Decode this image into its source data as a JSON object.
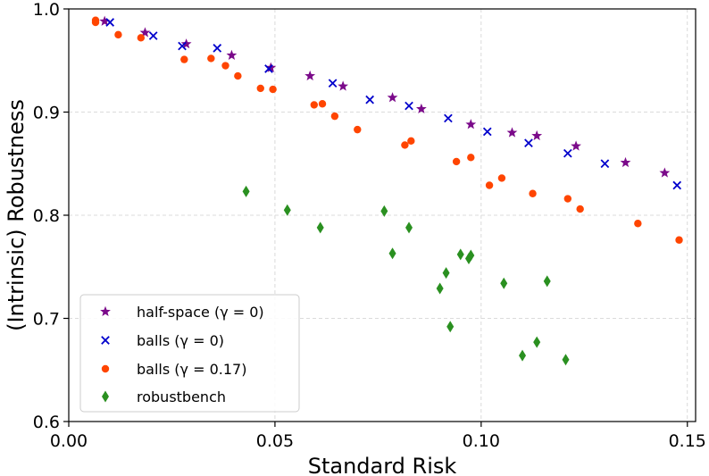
{
  "chart_data": {
    "type": "scatter",
    "xlabel": "Standard Risk",
    "ylabel": "(Intrinsic) Robustness",
    "xlim": [
      0.0,
      0.152
    ],
    "ylim": [
      0.6,
      1.0
    ],
    "xticks": [
      0.0,
      0.05,
      0.1,
      0.15
    ],
    "xtick_labels": [
      "0.00",
      "0.05",
      "0.10",
      "0.15"
    ],
    "yticks": [
      0.6,
      0.7,
      0.8,
      0.9,
      1.0
    ],
    "ytick_labels": [
      "0.6",
      "0.7",
      "0.8",
      "0.9",
      "1.0"
    ],
    "grid": true,
    "legend_position": "lower-left",
    "series": [
      {
        "name": "half-space (γ = 0)",
        "marker": "star",
        "color": "#7b0a8a",
        "points": [
          [
            0.0087,
            0.988
          ],
          [
            0.0185,
            0.977
          ],
          [
            0.0285,
            0.966
          ],
          [
            0.0395,
            0.955
          ],
          [
            0.049,
            0.943
          ],
          [
            0.0585,
            0.935
          ],
          [
            0.0665,
            0.925
          ],
          [
            0.0785,
            0.914
          ],
          [
            0.0855,
            0.903
          ],
          [
            0.0975,
            0.888
          ],
          [
            0.1075,
            0.88
          ],
          [
            0.1135,
            0.877
          ],
          [
            0.123,
            0.867
          ],
          [
            0.135,
            0.851
          ],
          [
            0.1445,
            0.841
          ]
        ]
      },
      {
        "name": "balls (γ = 0)",
        "marker": "x",
        "color": "#0000cc",
        "points": [
          [
            0.01,
            0.987
          ],
          [
            0.0205,
            0.974
          ],
          [
            0.0275,
            0.964
          ],
          [
            0.036,
            0.962
          ],
          [
            0.0485,
            0.942
          ],
          [
            0.064,
            0.928
          ],
          [
            0.073,
            0.912
          ],
          [
            0.0825,
            0.906
          ],
          [
            0.092,
            0.894
          ],
          [
            0.1015,
            0.881
          ],
          [
            0.1115,
            0.87
          ],
          [
            0.121,
            0.86
          ],
          [
            0.13,
            0.85
          ],
          [
            0.1475,
            0.829
          ]
        ]
      },
      {
        "name": "balls (γ = 0.17)",
        "marker": "circle",
        "color": "#ff4500",
        "points": [
          [
            0.0065,
            0.989
          ],
          [
            0.0065,
            0.987
          ],
          [
            0.012,
            0.975
          ],
          [
            0.0175,
            0.972
          ],
          [
            0.028,
            0.951
          ],
          [
            0.0345,
            0.952
          ],
          [
            0.038,
            0.945
          ],
          [
            0.041,
            0.935
          ],
          [
            0.0465,
            0.923
          ],
          [
            0.0495,
            0.922
          ],
          [
            0.0595,
            0.907
          ],
          [
            0.0615,
            0.908
          ],
          [
            0.0645,
            0.896
          ],
          [
            0.07,
            0.883
          ],
          [
            0.0815,
            0.868
          ],
          [
            0.083,
            0.872
          ],
          [
            0.094,
            0.852
          ],
          [
            0.0975,
            0.856
          ],
          [
            0.102,
            0.829
          ],
          [
            0.105,
            0.836
          ],
          [
            0.1125,
            0.821
          ],
          [
            0.121,
            0.816
          ],
          [
            0.124,
            0.806
          ],
          [
            0.138,
            0.792
          ],
          [
            0.148,
            0.776
          ]
        ]
      },
      {
        "name": "robustbench",
        "marker": "diamond",
        "color": "#2a9020",
        "points": [
          [
            0.043,
            0.823
          ],
          [
            0.053,
            0.805
          ],
          [
            0.061,
            0.788
          ],
          [
            0.0765,
            0.804
          ],
          [
            0.0785,
            0.763
          ],
          [
            0.0825,
            0.788
          ],
          [
            0.09,
            0.729
          ],
          [
            0.0915,
            0.744
          ],
          [
            0.0925,
            0.692
          ],
          [
            0.095,
            0.762
          ],
          [
            0.097,
            0.758
          ],
          [
            0.0975,
            0.761
          ],
          [
            0.1055,
            0.734
          ],
          [
            0.11,
            0.664
          ],
          [
            0.1135,
            0.677
          ],
          [
            0.116,
            0.736
          ],
          [
            0.1205,
            0.66
          ]
        ]
      }
    ]
  }
}
